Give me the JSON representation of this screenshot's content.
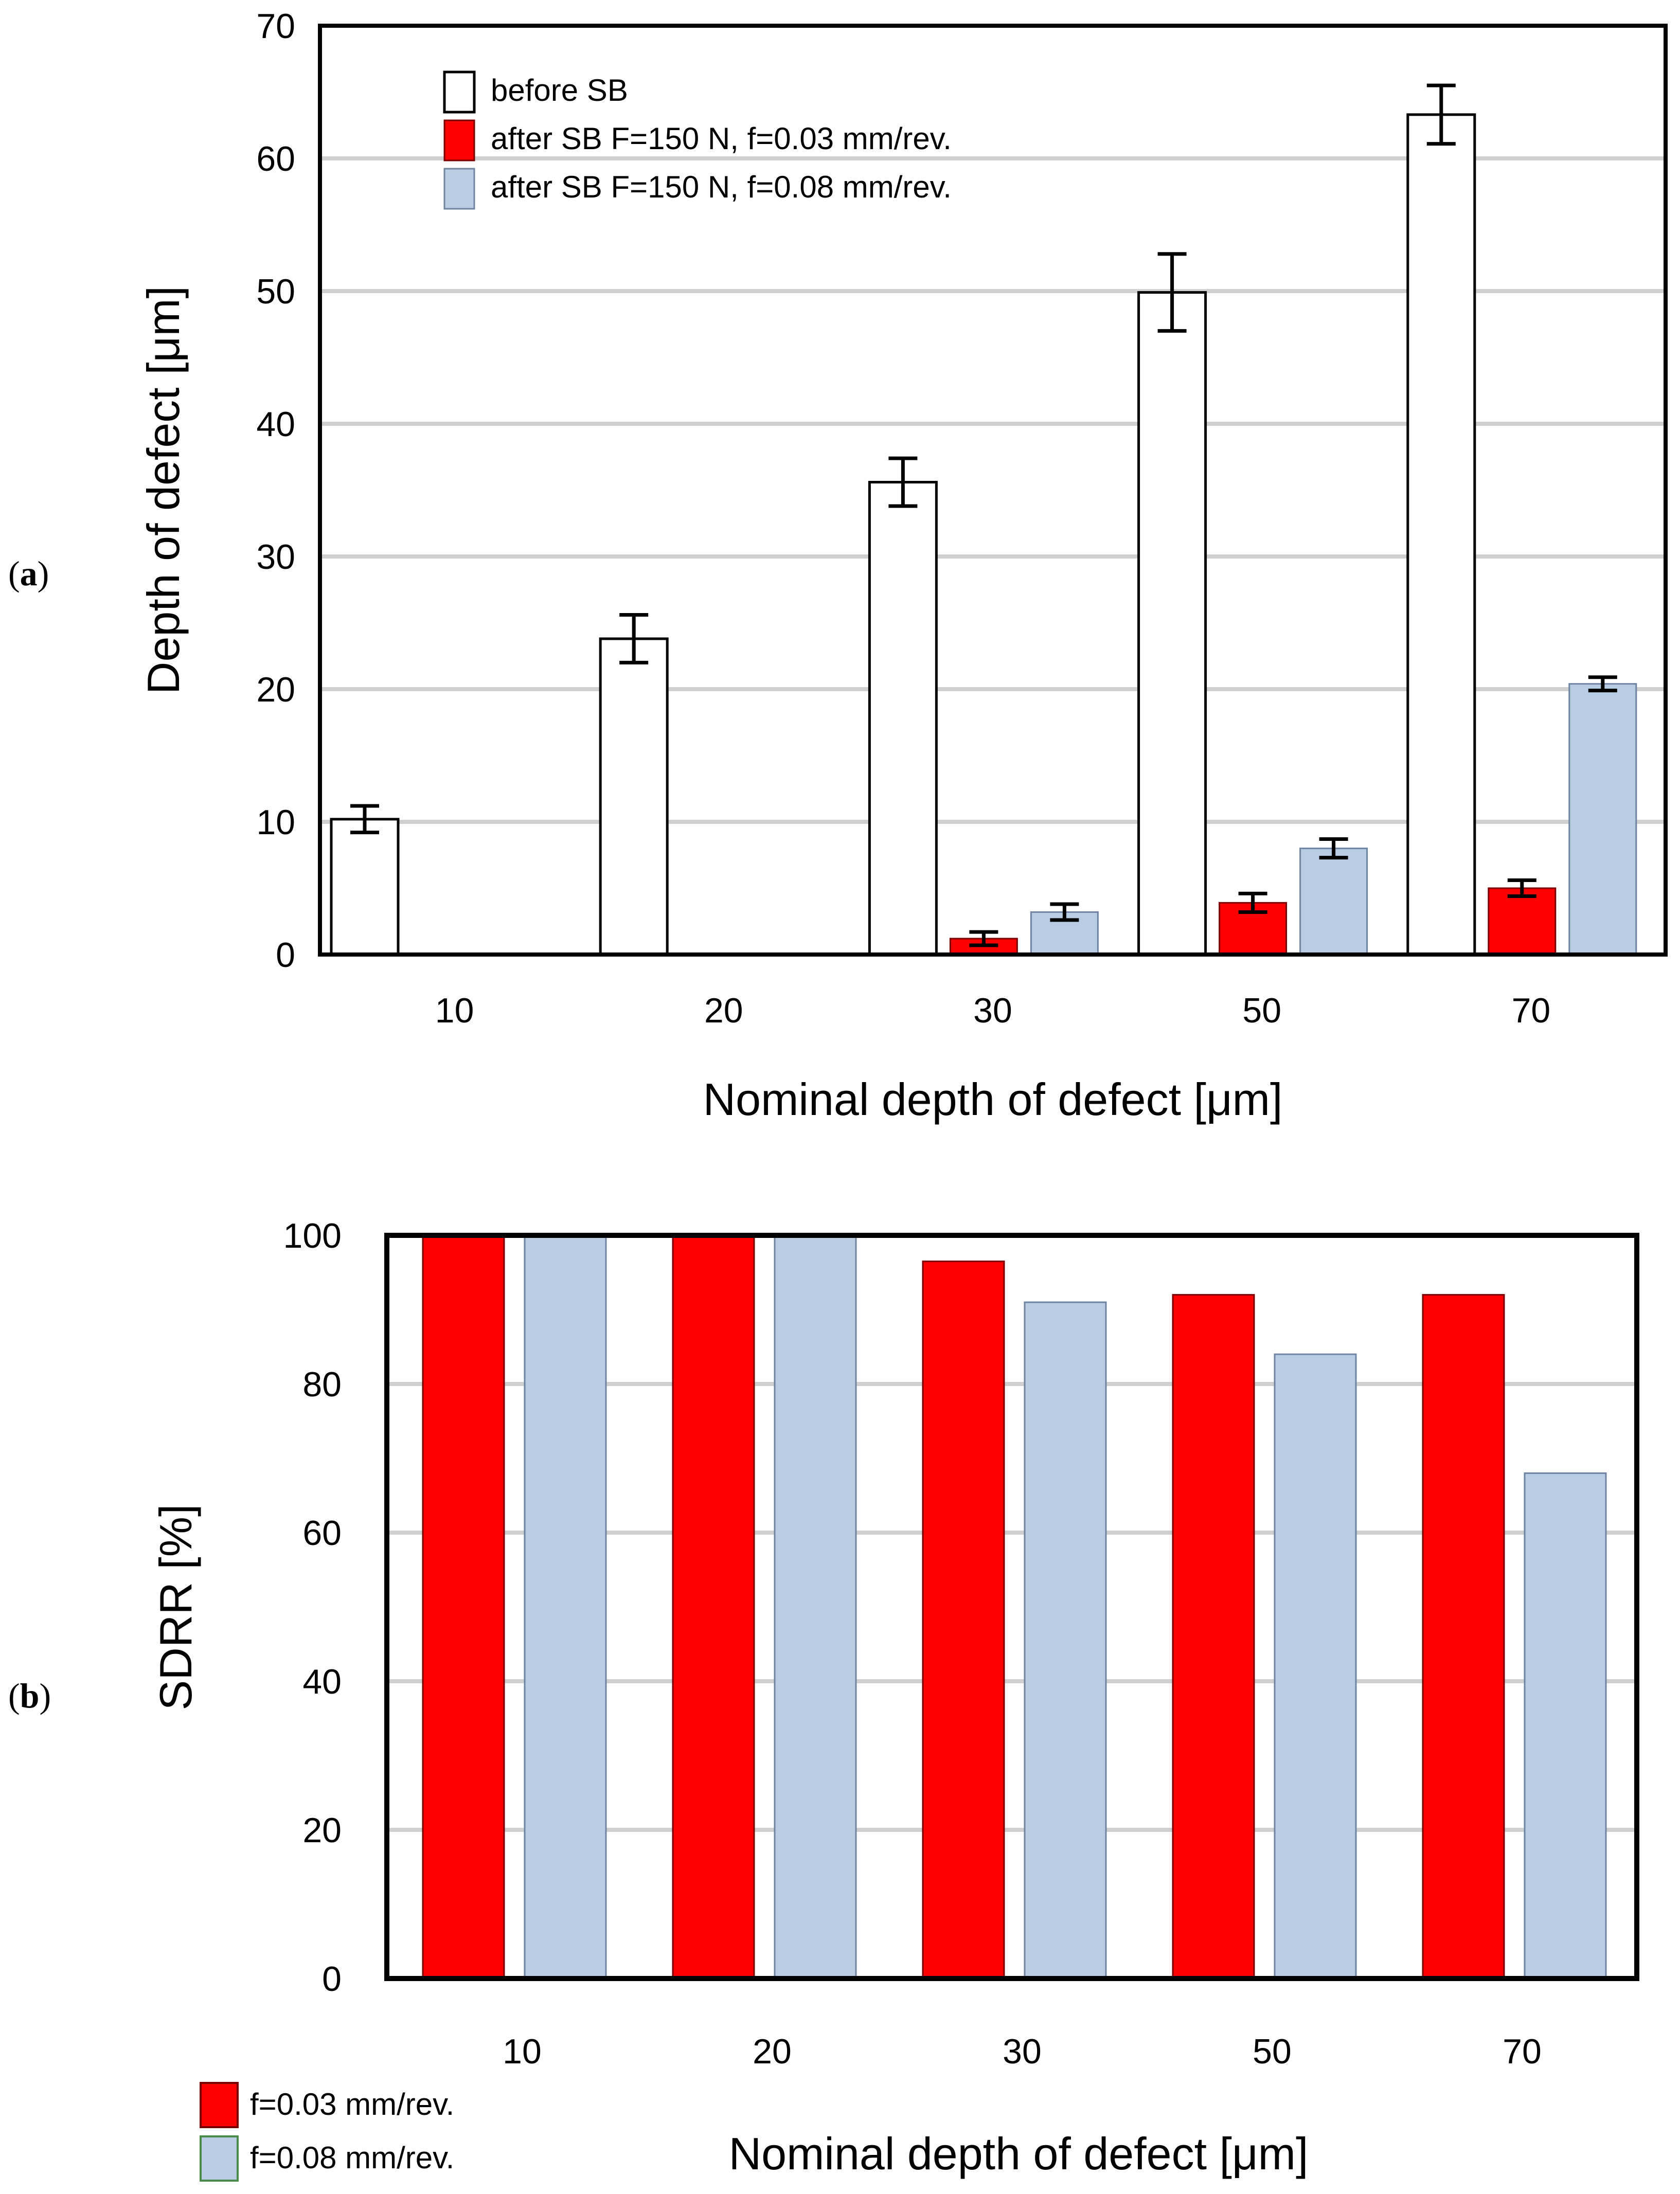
{
  "chart_data": [
    {
      "type": "bar",
      "panel_label": "a",
      "categories": [
        "10",
        "20",
        "30",
        "50",
        "70"
      ],
      "series": [
        {
          "name": "before SB",
          "color": "#ffffff",
          "values": [
            10.2,
            23.8,
            35.6,
            49.9,
            63.3
          ],
          "errors": [
            1.0,
            1.8,
            1.8,
            2.9,
            2.2
          ]
        },
        {
          "name": "after SB F=150 N, f=0.03 mm/rev.",
          "color": "#ff0000",
          "values": [
            0,
            0,
            1.2,
            3.9,
            5.0
          ],
          "errors": [
            0,
            0,
            0.5,
            0.7,
            0.6
          ]
        },
        {
          "name": "after SB F=150 N, f=0.08 mm/rev.",
          "color": "#b8cce4",
          "values": [
            0,
            0,
            3.2,
            8.0,
            20.4
          ],
          "errors": [
            0,
            0,
            0.6,
            0.7,
            0.5
          ]
        }
      ],
      "xlabel": "Nominal depth of defect [μm]",
      "ylabel": "Depth of defect [μm]",
      "ylim": [
        0,
        70
      ],
      "yticks": [
        "0",
        "10",
        "20",
        "30",
        "40",
        "50",
        "60",
        "70"
      ],
      "grid": true,
      "legend_position": "top-left"
    },
    {
      "type": "bar",
      "panel_label": "b",
      "categories": [
        "10",
        "20",
        "30",
        "50",
        "70"
      ],
      "series": [
        {
          "name": "f=0.03 mm/rev.",
          "color": "#ff0000",
          "values": [
            100,
            100,
            96.5,
            92,
            92
          ]
        },
        {
          "name": "f=0.08 mm/rev.",
          "color": "#b8cce4",
          "values": [
            100,
            100,
            91,
            84,
            68
          ]
        }
      ],
      "xlabel": "Nominal depth of defect [μm]",
      "ylabel": "SDRR [%]",
      "ylim": [
        0,
        100
      ],
      "yticks": [
        "0",
        "20",
        "40",
        "60",
        "80",
        "100"
      ],
      "grid": true,
      "legend_position": "bottom-left"
    }
  ]
}
